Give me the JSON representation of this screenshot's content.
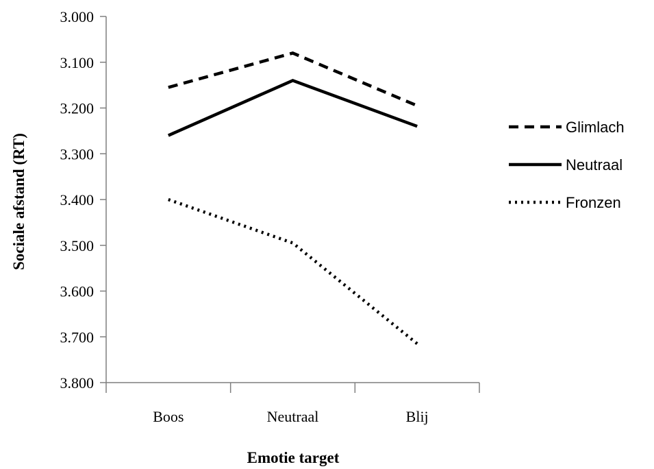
{
  "chart_data": {
    "type": "line",
    "title": "",
    "xlabel": "Emotie target",
    "ylabel": "Sociale afstand (RT)",
    "categories": [
      "Boos",
      "Neutraal",
      "Blij"
    ],
    "ylim": [
      3.0,
      3.8
    ],
    "y_inverted": true,
    "y_ticks": [
      "3.000",
      "3.100",
      "3.200",
      "3.300",
      "3.400",
      "3.500",
      "3.600",
      "3.700",
      "3.800"
    ],
    "y_tick_values": [
      3.0,
      3.1,
      3.2,
      3.3,
      3.4,
      3.5,
      3.6,
      3.7,
      3.8
    ],
    "grid": false,
    "legend_position": "right",
    "series": [
      {
        "name": "Glimlach",
        "style": "dashed",
        "values": [
          3.155,
          3.08,
          3.195
        ]
      },
      {
        "name": "Neutraal",
        "style": "solid",
        "values": [
          3.26,
          3.14,
          3.24
        ]
      },
      {
        "name": "Fronzen",
        "style": "dotted",
        "values": [
          3.4,
          3.495,
          3.715
        ]
      }
    ]
  }
}
